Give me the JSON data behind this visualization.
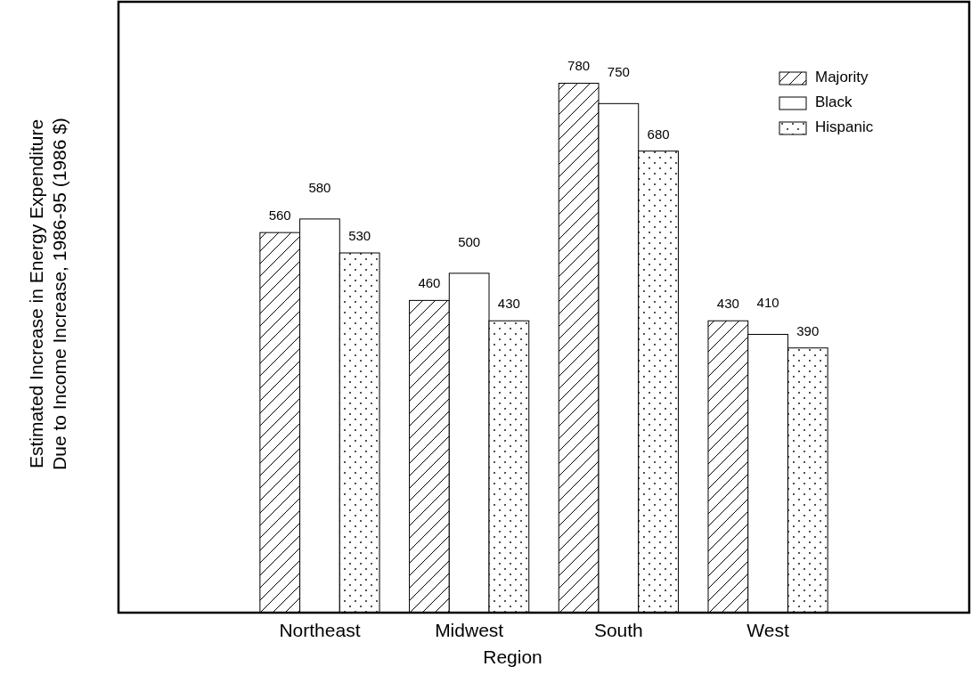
{
  "chart_data": {
    "type": "bar",
    "xlabel": "Region",
    "ylabel": "Estimated Increase in Energy Expenditure\nDue to Income Increase, 1986-95 (1986 $)",
    "categories": [
      "Northeast",
      "Midwest",
      "South",
      "West"
    ],
    "series": [
      {
        "name": "Majority",
        "color": "#000000",
        "values": [
          560,
          460,
          780,
          430
        ]
      },
      {
        "name": "Black",
        "color": "#ffffff",
        "values": [
          580,
          500,
          750,
          410
        ]
      },
      {
        "name": "Hispanic",
        "color": "#000000",
        "values": [
          530,
          430,
          680,
          390
        ]
      }
    ],
    "ylim": [
      0,
      900
    ],
    "tick_labels": "x",
    "data_labels": true,
    "legend": "top right"
  }
}
